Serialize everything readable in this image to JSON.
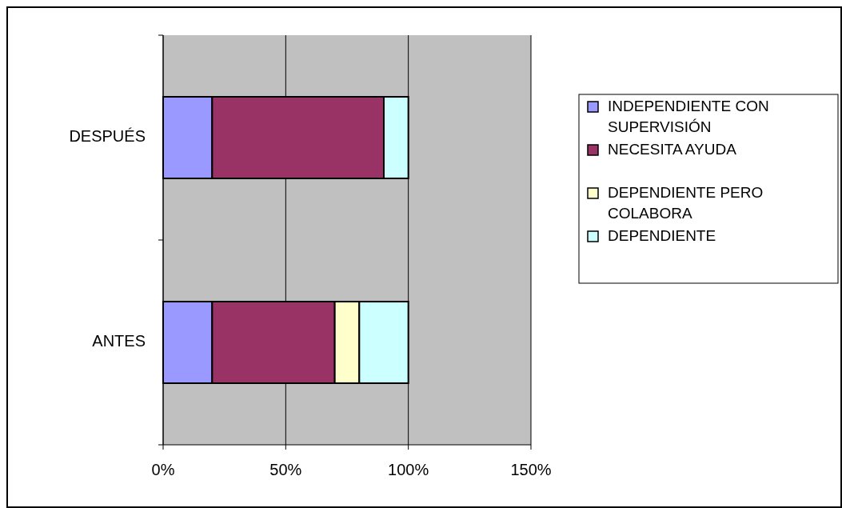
{
  "chart_data": {
    "type": "bar",
    "orientation": "horizontal",
    "stacked": true,
    "categories": [
      "DESPUÉS",
      "ANTES"
    ],
    "series": [
      {
        "name": "INDEPENDIENTE CON SUPERVISIÓN",
        "color": "#9999ff",
        "values": [
          20,
          20
        ]
      },
      {
        "name": "NECESITA AYUDA",
        "color": "#993366",
        "values": [
          70,
          50
        ]
      },
      {
        "name": "DEPENDIENTE PERO COLABORA",
        "color": "#ffffcc",
        "values": [
          0,
          10
        ]
      },
      {
        "name": "DEPENDIENTE",
        "color": "#ccffff",
        "values": [
          10,
          20
        ]
      }
    ],
    "xlim": [
      0,
      150
    ],
    "xticks": [
      {
        "value": 0,
        "label": "0%"
      },
      {
        "value": 50,
        "label": "50%"
      },
      {
        "value": 100,
        "label": "100%"
      },
      {
        "value": 150,
        "label": "150%"
      }
    ],
    "grid": "x",
    "legend": "right"
  }
}
